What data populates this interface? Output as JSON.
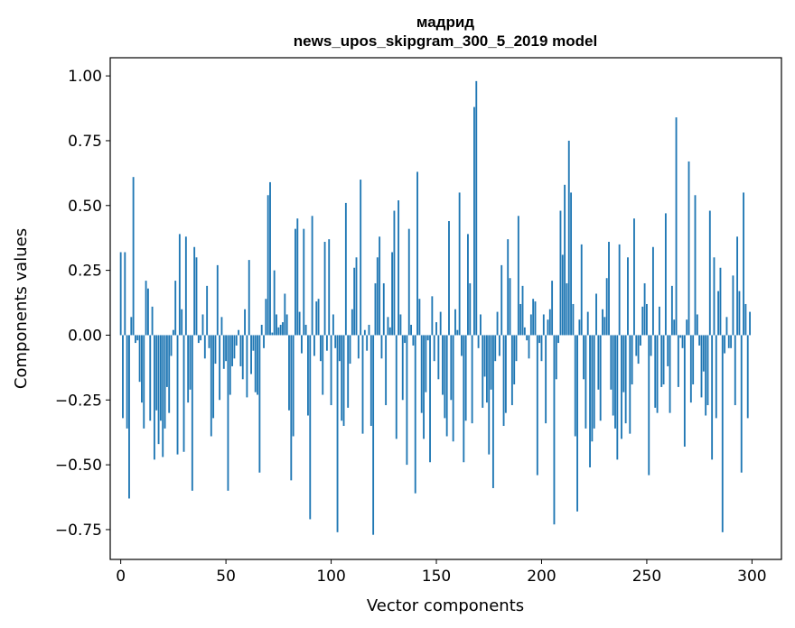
{
  "chart_data": {
    "type": "bar",
    "title_line1": "мадрид",
    "title_line2": "news_upos_skipgram_300_5_2019 model",
    "xlabel": "Vector components",
    "ylabel": "Components values",
    "xlim": [
      -5,
      314
    ],
    "ylim": [
      -0.865,
      1.07
    ],
    "x_ticks": [
      0,
      50,
      100,
      150,
      200,
      250,
      300
    ],
    "y_ticks": [
      1.0,
      0.75,
      0.5,
      0.25,
      0.0,
      -0.25,
      -0.5,
      -0.75
    ],
    "x_tick_labels": [
      "0",
      "50",
      "100",
      "150",
      "200",
      "250",
      "300"
    ],
    "y_tick_labels": [
      "1.00",
      "0.75",
      "0.50",
      "0.25",
      "0.00",
      "−0.25",
      "−0.50",
      "−0.75"
    ],
    "bar_color": "#1f77b4",
    "values": [
      0.32,
      -0.32,
      0.32,
      -0.36,
      -0.63,
      0.07,
      0.61,
      -0.03,
      -0.02,
      -0.18,
      -0.26,
      -0.36,
      0.21,
      0.18,
      -0.33,
      0.11,
      -0.48,
      -0.29,
      -0.42,
      -0.33,
      -0.47,
      -0.36,
      -0.2,
      -0.3,
      -0.08,
      0.02,
      0.21,
      -0.46,
      0.39,
      0.1,
      -0.45,
      0.38,
      -0.26,
      -0.21,
      -0.6,
      0.34,
      0.3,
      -0.03,
      -0.02,
      0.08,
      -0.09,
      0.19,
      -0.05,
      -0.39,
      -0.32,
      -0.11,
      0.27,
      -0.25,
      0.07,
      -0.13,
      -0.1,
      -0.6,
      -0.23,
      -0.12,
      -0.09,
      -0.04,
      0.02,
      -0.12,
      -0.17,
      0.1,
      -0.24,
      0.29,
      -0.15,
      -0.06,
      -0.22,
      -0.23,
      -0.53,
      0.04,
      -0.05,
      0.14,
      0.54,
      0.59,
      0.01,
      0.25,
      0.08,
      0.03,
      0.04,
      0.05,
      0.16,
      0.08,
      -0.29,
      -0.56,
      -0.39,
      0.41,
      0.45,
      0.09,
      -0.07,
      0.41,
      0.04,
      -0.31,
      -0.71,
      0.46,
      -0.08,
      0.13,
      0.14,
      -0.1,
      -0.23,
      0.36,
      -0.06,
      0.37,
      -0.27,
      0.08,
      -0.05,
      -0.76,
      -0.1,
      -0.33,
      -0.35,
      0.51,
      -0.28,
      -0.11,
      0.1,
      0.26,
      0.3,
      -0.09,
      0.6,
      -0.38,
      0.02,
      -0.06,
      0.04,
      -0.35,
      -0.77,
      0.2,
      0.3,
      0.38,
      -0.09,
      0.2,
      -0.27,
      0.07,
      0.03,
      0.32,
      0.48,
      -0.4,
      0.52,
      0.08,
      -0.25,
      -0.03,
      -0.5,
      0.41,
      0.04,
      -0.04,
      -0.61,
      0.63,
      0.14,
      -0.3,
      -0.4,
      -0.22,
      -0.02,
      -0.49,
      0.15,
      -0.1,
      0.05,
      -0.17,
      0.09,
      -0.23,
      -0.32,
      -0.39,
      0.44,
      -0.25,
      -0.41,
      0.1,
      0.02,
      0.55,
      -0.08,
      -0.49,
      -0.33,
      0.39,
      0.2,
      -0.34,
      0.88,
      0.98,
      -0.05,
      0.08,
      -0.28,
      -0.16,
      -0.26,
      -0.46,
      -0.21,
      -0.59,
      -0.1,
      0.09,
      -0.08,
      0.27,
      -0.35,
      -0.3,
      0.37,
      0.22,
      -0.27,
      -0.19,
      -0.1,
      0.46,
      0.12,
      0.19,
      0.03,
      -0.02,
      -0.09,
      0.08,
      0.14,
      0.13,
      -0.54,
      -0.03,
      -0.1,
      0.08,
      -0.34,
      0.06,
      0.1,
      0.21,
      -0.73,
      -0.17,
      -0.03,
      0.48,
      0.31,
      0.58,
      0.2,
      0.75,
      0.55,
      0.12,
      -0.39,
      -0.68,
      0.06,
      0.35,
      -0.17,
      -0.36,
      0.09,
      -0.51,
      -0.41,
      -0.36,
      0.16,
      -0.21,
      -0.33,
      0.1,
      0.07,
      0.22,
      0.36,
      -0.21,
      -0.31,
      -0.36,
      -0.48,
      0.35,
      -0.4,
      -0.22,
      -0.34,
      0.3,
      -0.38,
      -0.19,
      0.45,
      -0.08,
      -0.11,
      -0.04,
      0.11,
      0.2,
      0.12,
      -0.54,
      -0.08,
      0.34,
      -0.28,
      -0.3,
      0.11,
      -0.2,
      -0.19,
      0.47,
      -0.12,
      -0.3,
      0.19,
      0.06,
      0.84,
      -0.2,
      -0.01,
      -0.05,
      -0.43,
      0.06,
      0.67,
      -0.26,
      -0.19,
      0.54,
      0.08,
      -0.04,
      -0.24,
      -0.14,
      -0.31,
      -0.27,
      0.48,
      -0.48,
      0.3,
      -0.32,
      0.17,
      0.26,
      -0.76,
      -0.07,
      0.07,
      -0.05,
      -0.05,
      0.23,
      -0.27,
      0.38,
      0.17,
      -0.53,
      0.55,
      0.12,
      -0.32,
      0.09
    ]
  }
}
